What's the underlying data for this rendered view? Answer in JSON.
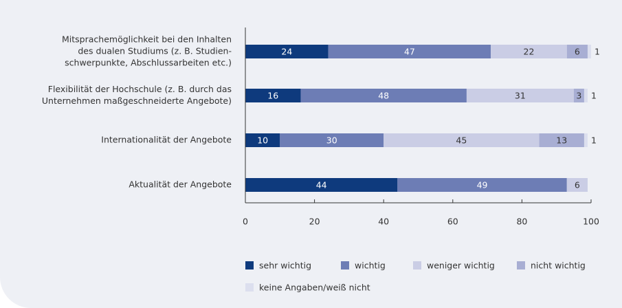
{
  "chart_data": {
    "type": "stacked-barh",
    "categories": [
      [
        "Mitsprachemöglichkeit bei den Inhalten",
        "des dualen Studiums (z. B. Studien-",
        "schwerpunkte, Abschlussarbeiten etc.)"
      ],
      [
        "Flexibilität der Hochschule (z. B. durch das",
        "Unternehmen maßgeschneiderte Angebote)"
      ],
      [
        "Internationalität der Angebote"
      ],
      [
        "Aktualität der Angebote"
      ]
    ],
    "series": [
      {
        "name": "sehr wichtig",
        "color": "#0e3a7d",
        "values": [
          24,
          16,
          10,
          44
        ]
      },
      {
        "name": "wichtig",
        "color": "#6d7db5",
        "values": [
          47,
          48,
          30,
          49
        ]
      },
      {
        "name": "weniger wichtig",
        "color": "#cacde5",
        "values": [
          22,
          31,
          45,
          6
        ]
      },
      {
        "name": "nicht wichtig",
        "color": "#a8aed3",
        "values": [
          6,
          3,
          13,
          null
        ]
      },
      {
        "name": "keine Angaben/weiß nicht",
        "color": "#dcdfee",
        "values": [
          1,
          1,
          1,
          null
        ]
      }
    ],
    "xlim": [
      0,
      100
    ],
    "xticks": [
      0,
      20,
      40,
      60,
      80,
      100
    ]
  }
}
